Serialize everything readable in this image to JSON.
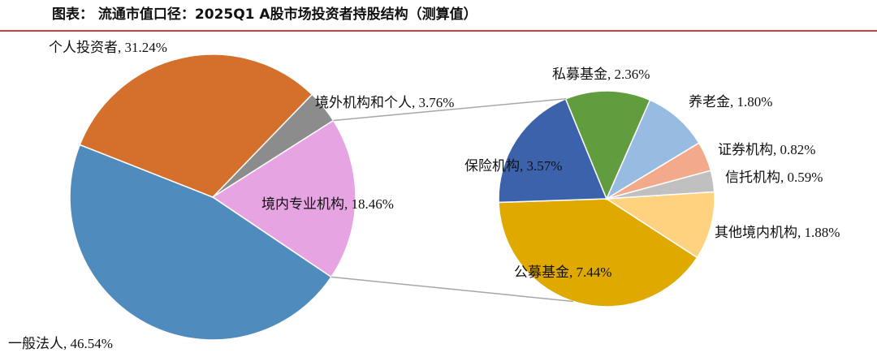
{
  "chart_data": {
    "type": "pie-of-pie",
    "title": "图表： 流通市值口径：2025Q1 A股市场投资者持股结构（测算值）",
    "pies": [
      {
        "values": [
          3.76,
          18.46,
          46.54,
          31.24
        ],
        "value_labels": [
          "境外机构和个人, 3.76%",
          "境内专业机构, 18.46%",
          "一般法人, 46.54%",
          "个人投资者, 31.24%"
        ],
        "colors": [
          "#8c8c8c",
          "#e6a4e2",
          "#4f8bbd",
          "#d4702c"
        ]
      },
      {
        "values": [
          7.44,
          3.57,
          2.36,
          1.8,
          0.82,
          0.59,
          1.88
        ],
        "value_labels": [
          "公募基金, 7.44%",
          "保险机构, 3.57%",
          "私募基金, 2.36%",
          "养老金, 1.80%",
          "证券机构, 0.82%",
          "信托机构, 0.59%",
          "其他境内机构, 1.88%"
        ],
        "colors": [
          "#e0a900",
          "#3c62ab",
          "#619c3f",
          "#98bbe2",
          "#f2aa8a",
          "#c0c0c0",
          "#ffd280"
        ]
      }
    ]
  }
}
